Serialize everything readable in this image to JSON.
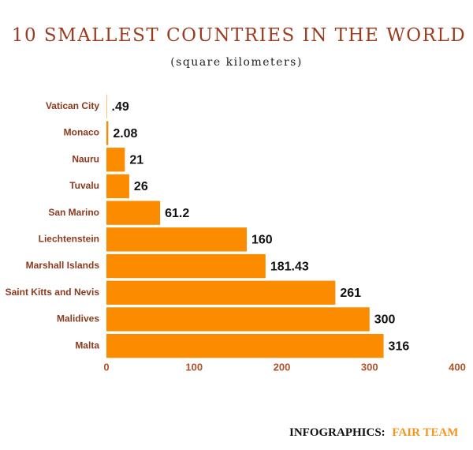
{
  "chart_data": {
    "type": "hbar",
    "title": "10 SMALLEST COUNTRIES IN THE WORLD",
    "subtitle": "(square kilometers)",
    "categories": [
      "Vatican City",
      "Monaco",
      "Nauru",
      "Tuvalu",
      "San Marino",
      "Liechtenstein",
      "Marshall Islands",
      "Saint Kitts and Nevis",
      "Malidives",
      "Malta"
    ],
    "values": [
      0.49,
      2.08,
      21,
      26,
      61.2,
      160,
      181.43,
      261,
      300,
      316
    ],
    "value_labels": [
      ".49",
      "2.08",
      "21",
      "26",
      "61.2",
      "160",
      "181.43",
      "261",
      "300",
      "316"
    ],
    "color": "#fb8c00",
    "xlim": [
      0,
      400
    ],
    "xticks": [
      0,
      100,
      200,
      300,
      400
    ],
    "grid": false
  },
  "footer": {
    "label": "INFOGRAPHICS:",
    "brand": "FAIR TEAM"
  }
}
